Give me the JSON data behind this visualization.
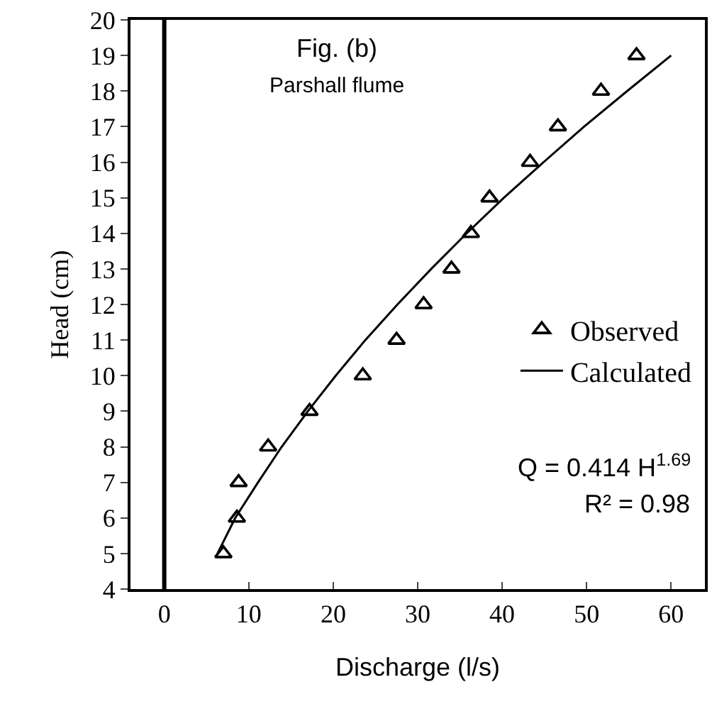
{
  "chart_data": {
    "type": "scatter",
    "xlabel": "Discharge (l/s)",
    "ylabel": "Head (cm)",
    "xlim": [
      -4,
      64
    ],
    "xticks": [
      0,
      10,
      20,
      30,
      40,
      50,
      60
    ],
    "ylim": [
      4,
      20
    ],
    "yticks": [
      4,
      5,
      6,
      7,
      8,
      9,
      10,
      11,
      12,
      13,
      14,
      15,
      16,
      17,
      18,
      19,
      20
    ],
    "legend": "right",
    "series": [
      {
        "name": "Observed",
        "marker": "triangle",
        "color": "#000000",
        "x": [
          7.0,
          8.6,
          8.8,
          12.3,
          17.2,
          23.5,
          27.5,
          30.7,
          34.0,
          36.3,
          38.5,
          43.3,
          46.6,
          51.7,
          55.9
        ],
        "values": [
          5,
          6,
          7,
          8,
          9,
          10,
          11,
          12,
          13,
          14,
          15,
          16,
          17,
          18,
          19
        ]
      },
      {
        "name": "Calculated",
        "type": "line",
        "marker": "none",
        "line_style": "solid",
        "color": "#000000",
        "x": [
          6.3,
          8.4,
          11.1,
          13.9,
          17.0,
          20.3,
          23.8,
          27.6,
          31.6,
          35.8,
          40.2,
          44.9,
          49.7,
          54.8,
          60.0
        ],
        "values": [
          5,
          6,
          7,
          8,
          9,
          10,
          11,
          12,
          13,
          14,
          15,
          16,
          17,
          18,
          19
        ]
      }
    ],
    "ref_lines": [
      {
        "axis": "x",
        "value": 0,
        "color": "#000000",
        "line_style": "solid"
      }
    ],
    "annotations": [
      "Fig. (b)",
      "Parshall flume",
      "Q = 0.414 H$^{1.69}$",
      "R² = 0.98"
    ]
  }
}
